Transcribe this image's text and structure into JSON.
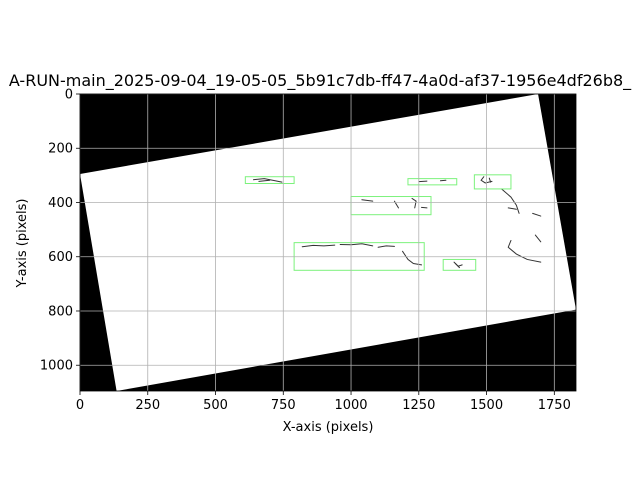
{
  "chart_data": {
    "type": "image",
    "title": "A-RUN-main_2025-09-04_19-05-05_5b91c7db-ff47-4a0d-af37-1956e4df26b8_",
    "xlabel": "X-axis (pixels)",
    "ylabel": "Y-axis (pixels)",
    "xlim": [
      0,
      1830
    ],
    "ylim": [
      1095,
      0
    ],
    "x_ticks": [
      0,
      250,
      500,
      750,
      1000,
      1250,
      1500,
      1750
    ],
    "y_ticks": [
      0,
      200,
      400,
      600,
      800,
      1000
    ],
    "grid": true,
    "colors": {
      "background": "#000000",
      "image_region": "#ffffff",
      "stroke": "#333333",
      "box": "#7cf27c",
      "grid": "#b0b0b0"
    },
    "image_region_polygon": [
      [
        0,
        295
      ],
      [
        1690,
        0
      ],
      [
        1830,
        795
      ],
      [
        135,
        1095
      ]
    ],
    "detection_boxes": [
      {
        "x0": 610,
        "y0": 305,
        "x1": 790,
        "y1": 330
      },
      {
        "x0": 1210,
        "y0": 312,
        "x1": 1390,
        "y1": 335
      },
      {
        "x0": 1455,
        "y0": 298,
        "x1": 1590,
        "y1": 350
      },
      {
        "x0": 1000,
        "y0": 378,
        "x1": 1295,
        "y1": 445
      },
      {
        "x0": 790,
        "y0": 548,
        "x1": 1270,
        "y1": 650
      },
      {
        "x0": 1340,
        "y0": 610,
        "x1": 1460,
        "y1": 650
      }
    ],
    "strokes": [
      [
        [
          640,
          316
        ],
        [
          680,
          312
        ],
        [
          720,
          320
        ],
        [
          745,
          325
        ]
      ],
      [
        [
          660,
          322
        ],
        [
          700,
          318
        ]
      ],
      [
        [
          1250,
          323
        ],
        [
          1280,
          321
        ]
      ],
      [
        [
          1330,
          320
        ],
        [
          1350,
          318
        ]
      ],
      [
        [
          1490,
          305
        ],
        [
          1480,
          318
        ],
        [
          1495,
          328
        ],
        [
          1520,
          322
        ]
      ],
      [
        [
          1510,
          310
        ],
        [
          1515,
          325
        ]
      ],
      [
        [
          1555,
          350
        ],
        [
          1590,
          380
        ],
        [
          1610,
          410
        ],
        [
          1620,
          440
        ]
      ],
      [
        [
          1580,
          420
        ],
        [
          1610,
          425
        ]
      ],
      [
        [
          1670,
          440
        ],
        [
          1700,
          450
        ]
      ],
      [
        [
          1590,
          540
        ],
        [
          1580,
          565
        ],
        [
          1610,
          590
        ],
        [
          1650,
          610
        ],
        [
          1700,
          620
        ]
      ],
      [
        [
          1680,
          520
        ],
        [
          1700,
          545
        ]
      ],
      [
        [
          1040,
          390
        ],
        [
          1080,
          395
        ]
      ],
      [
        [
          1160,
          395
        ],
        [
          1175,
          420
        ]
      ],
      [
        [
          1225,
          385
        ],
        [
          1240,
          395
        ],
        [
          1235,
          420
        ]
      ],
      [
        [
          1260,
          418
        ],
        [
          1280,
          420
        ]
      ],
      [
        [
          820,
          563
        ],
        [
          860,
          558
        ],
        [
          900,
          560
        ],
        [
          940,
          557
        ]
      ],
      [
        [
          960,
          555
        ],
        [
          1000,
          556
        ],
        [
          1040,
          552
        ],
        [
          1080,
          560
        ]
      ],
      [
        [
          1100,
          565
        ],
        [
          1130,
          560
        ],
        [
          1160,
          562
        ]
      ],
      [
        [
          1190,
          580
        ],
        [
          1210,
          610
        ],
        [
          1230,
          625
        ],
        [
          1260,
          630
        ]
      ],
      [
        [
          1380,
          620
        ],
        [
          1395,
          635
        ],
        [
          1410,
          630
        ]
      ],
      [
        [
          1385,
          625
        ],
        [
          1400,
          640
        ]
      ]
    ]
  }
}
